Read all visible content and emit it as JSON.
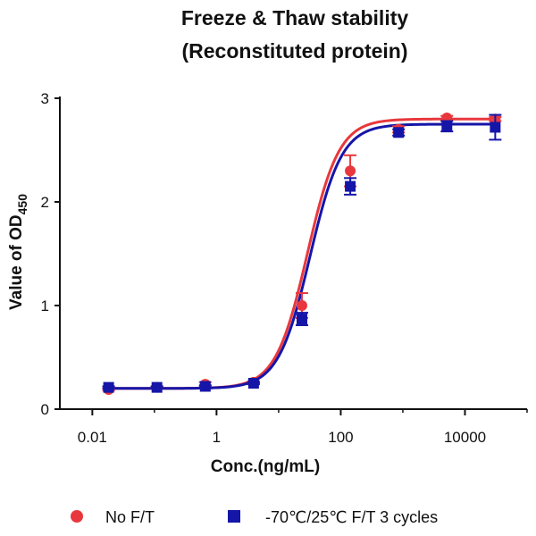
{
  "chart_data": {
    "type": "scatter",
    "title_lines": [
      "Freeze & Thaw stability",
      "(Reconstituted protein)"
    ],
    "xlabel": "Conc.(ng/mL)",
    "ylabel": "Value of OD",
    "ylabel_subscript": "450",
    "x_scale": "log",
    "xlim": [
      0.003,
      100000
    ],
    "ylim": [
      0,
      3
    ],
    "x_ticks": [
      0.01,
      1,
      100,
      10000
    ],
    "x_tick_labels": [
      "0.01",
      "1",
      "100",
      "10000"
    ],
    "y_ticks": [
      0,
      1,
      2,
      3
    ],
    "y_tick_labels": [
      "0",
      "1",
      "2",
      "3"
    ],
    "grid": false,
    "legend_position": "bottom",
    "series": [
      {
        "name": "No F/T",
        "color": "#e8383d",
        "marker": "circle",
        "x": [
          0.0183,
          0.1098,
          0.6586,
          3.95,
          23.7,
          142.2,
          853.3,
          5120,
          30720
        ],
        "y": [
          0.19,
          0.21,
          0.24,
          0.26,
          1.0,
          2.3,
          2.7,
          2.81,
          2.8
        ],
        "err": [
          0.01,
          0.01,
          0.02,
          0.01,
          0.12,
          0.15,
          0.03,
          0.02,
          0.02
        ],
        "fit": {
          "bottom": 0.2,
          "top": 2.8,
          "ec50": 29,
          "hill": 1.7
        }
      },
      {
        "name": "-70℃/25℃  F/T 3 cycles",
        "color": "#1515a8",
        "marker": "square",
        "x": [
          0.0183,
          0.1098,
          0.6586,
          3.95,
          23.7,
          142.2,
          853.3,
          5120,
          30720
        ],
        "y": [
          0.21,
          0.21,
          0.22,
          0.25,
          0.87,
          2.15,
          2.67,
          2.73,
          2.72
        ],
        "err": [
          0.01,
          0.01,
          0.01,
          0.01,
          0.06,
          0.08,
          0.03,
          0.05,
          0.12
        ],
        "fit": {
          "bottom": 0.2,
          "top": 2.75,
          "ec50": 32,
          "hill": 1.7
        }
      }
    ]
  },
  "legend": [
    {
      "label": "No F/T",
      "color": "#e8383d",
      "marker": "circle"
    },
    {
      "label": "-70℃/25℃  F/T 3 cycles",
      "color": "#1515a8",
      "marker": "square"
    }
  ]
}
